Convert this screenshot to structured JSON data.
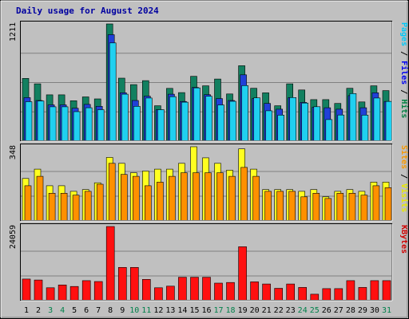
{
  "chart_data": {
    "type": "bar",
    "title": "Daily usage for August 2024",
    "days": [
      "1",
      "2",
      "3",
      "4",
      "5",
      "6",
      "7",
      "8",
      "9",
      "10",
      "11",
      "12",
      "13",
      "14",
      "15",
      "16",
      "17",
      "18",
      "19",
      "20",
      "21",
      "22",
      "23",
      "24",
      "25",
      "26",
      "27",
      "28",
      "29",
      "30",
      "31"
    ],
    "weekend_days": [
      "3",
      "4",
      "10",
      "11",
      "17",
      "18",
      "24",
      "25",
      "31"
    ],
    "panels": [
      {
        "id": "hits-files-pages",
        "ymax_label": "1211",
        "ymax": 1211,
        "legend": [
          {
            "text": "Pages",
            "color": "#00c8f8"
          },
          {
            "text": " / ",
            "color": "#000000"
          },
          {
            "text": "Files",
            "color": "#0000f0"
          },
          {
            "text": " / ",
            "color": "#000000"
          },
          {
            "text": "Hits",
            "color": "#008040"
          }
        ],
        "series": [
          {
            "name": "Hits",
            "color": "#128060",
            "values": [
              648,
              592,
              479,
              479,
              418,
              457,
              437,
              1211,
              651,
              584,
              625,
              366,
              545,
              502,
              670,
              572,
              642,
              488,
              779,
              546,
              499,
              366,
              592,
              529,
              429,
              429,
              390,
              546,
              405,
              572,
              522
            ]
          },
          {
            "name": "Files",
            "color": "#2040d8",
            "values": [
              450,
              420,
              375,
              375,
              340,
              380,
              360,
              1100,
              500,
              420,
              465,
              325,
              485,
              410,
              555,
              480,
              440,
              420,
              685,
              440,
              390,
              330,
              450,
              400,
              350,
              345,
              330,
              470,
              345,
              500,
              410
            ]
          },
          {
            "name": "Pages",
            "color": "#20d0f0",
            "values": [
              408,
              415,
              355,
              355,
              305,
              345,
              325,
              1015,
              485,
              360,
              446,
              325,
              460,
              403,
              550,
              464,
              374,
              412,
              574,
              447,
              314,
              269,
              451,
              394,
              356,
              223,
              270,
              492,
              269,
              446,
              410
            ]
          }
        ]
      },
      {
        "id": "visits-sites",
        "ymax_label": "348",
        "ymax": 348,
        "legend": [
          {
            "text": "Sites",
            "color": "#f89800"
          },
          {
            "text": " / ",
            "color": "#000000"
          },
          {
            "text": "Visits",
            "color": "#e8e800"
          }
        ],
        "series": [
          {
            "name": "Visits",
            "color": "#ffff20",
            "values": [
              199,
              243,
              165,
              165,
              139,
              147,
              179,
              298,
              270,
              226,
              234,
              243,
              243,
              270,
              348,
              296,
              270,
              238,
              338,
              243,
              147,
              147,
              147,
              139,
              147,
              113,
              139,
              147,
              139,
              182,
              182
            ]
          },
          {
            "name": "Sites",
            "color": "#ff9000",
            "values": [
              165,
              209,
              130,
              130,
              121,
              139,
              172,
              270,
              218,
              209,
              165,
              182,
              209,
              226,
              226,
              226,
              226,
              209,
              251,
              209,
              139,
              139,
              139,
              113,
              130,
              105,
              130,
              130,
              121,
              165,
              156
            ]
          }
        ]
      },
      {
        "id": "kbytes",
        "ymax_label": "24059",
        "ymax": 24059,
        "legend": [
          {
            "text": "KBytes",
            "color": "#d00000"
          }
        ],
        "series": [
          {
            "name": "KBytes",
            "color": "#ff1010",
            "values": [
              7000,
              6700,
              4200,
              5100,
              4600,
              6500,
              6200,
              24059,
              10800,
              10800,
              6900,
              4200,
              4700,
              7600,
              7600,
              7600,
              5700,
              5900,
              17500,
              6100,
              5400,
              4000,
              5400,
              4300,
              2100,
              3900,
              3900,
              6500,
              4300,
              6500,
              6500
            ]
          }
        ]
      }
    ]
  }
}
